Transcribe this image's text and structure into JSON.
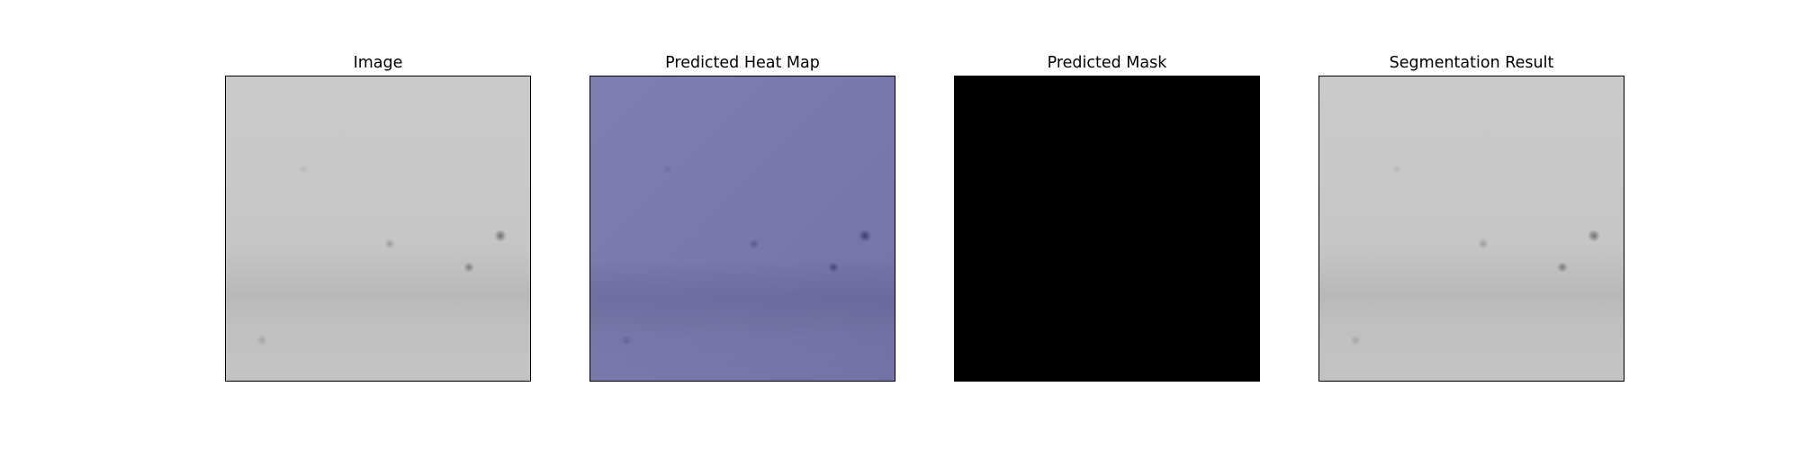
{
  "figure": {
    "panels": [
      {
        "title": "Image",
        "kind": "grayscale-image",
        "colors": {
          "base": "#c9c9c9",
          "band": "#b9b9b9",
          "dot": "#7a7a7a"
        }
      },
      {
        "title": "Predicted Heat Map",
        "kind": "heatmap-overlay",
        "colors": {
          "base": "#7a7aae",
          "band": "#6c6ca3",
          "dot": "#4a4a7a"
        }
      },
      {
        "title": "Predicted Mask",
        "kind": "binary-mask",
        "colors": {
          "base": "#000000"
        }
      },
      {
        "title": "Segmentation Result",
        "kind": "grayscale-image",
        "colors": {
          "base": "#c9c9c9",
          "band": "#b9b9b9",
          "dot": "#7a7a7a"
        }
      }
    ]
  }
}
